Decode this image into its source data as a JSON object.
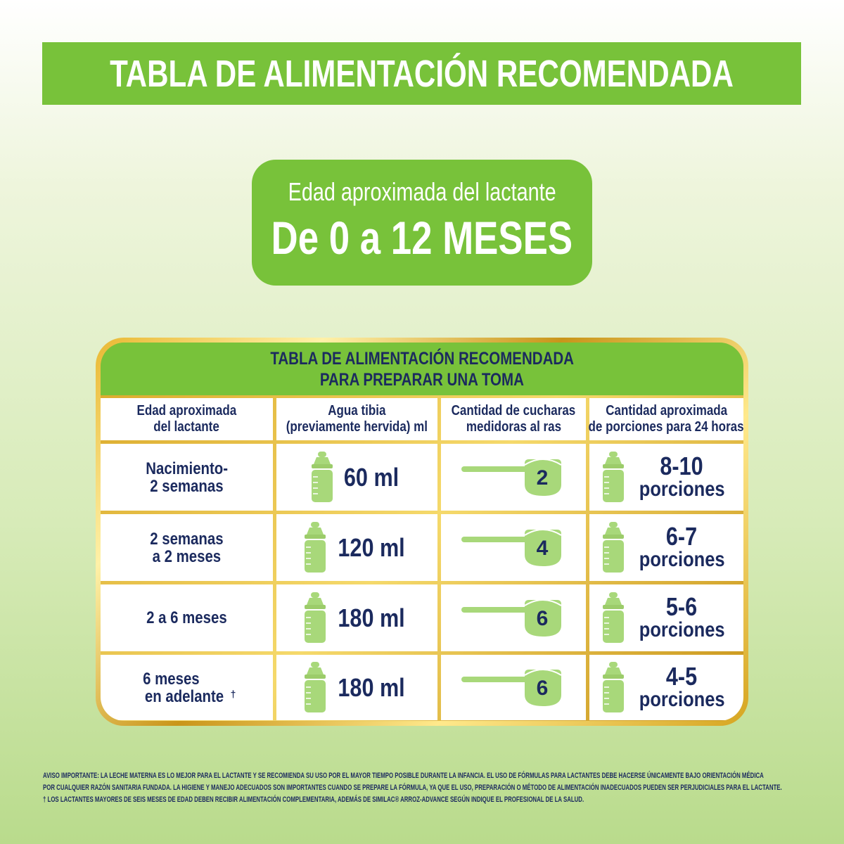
{
  "banner": {
    "title": "TABLA DE ALIMENTACIÓN RECOMENDADA"
  },
  "age_badge": {
    "subtitle": "Edad aproximada del lactante",
    "range": "De 0 a 12 MESES"
  },
  "table": {
    "title_line1": "TABLA DE ALIMENTACIÓN RECOMENDADA",
    "title_line2": "PARA PREPARAR UNA TOMA",
    "headers": [
      {
        "line1": "Edad aproximada",
        "line2": "del lactante"
      },
      {
        "line1": "Agua tibia",
        "line2": "(previamente hervida) ml"
      },
      {
        "line1": "Cantidad de cucharas",
        "line2": "medidoras al ras"
      },
      {
        "line1": "Cantidad aproximada",
        "line2": "de porciones para 24 horas"
      }
    ],
    "rows": [
      {
        "age_line1": "Nacimiento-",
        "age_line2": "2 semanas",
        "age_mark": "",
        "water": "60 ml",
        "scoops": "2",
        "portions_range": "8-10",
        "portions_unit": "porciones"
      },
      {
        "age_line1": "2 semanas",
        "age_line2": "a 2 meses",
        "age_mark": "",
        "water": "120 ml",
        "scoops": "4",
        "portions_range": "6-7",
        "portions_unit": "porciones"
      },
      {
        "age_line1": "2 a 6 meses",
        "age_line2": "",
        "age_mark": "",
        "water": "180 ml",
        "scoops": "6",
        "portions_range": "5-6",
        "portions_unit": "porciones"
      },
      {
        "age_line1": "6 meses",
        "age_line2": "en adelante",
        "age_mark": "†",
        "water": "180 ml",
        "scoops": "6",
        "portions_range": "4-5",
        "portions_unit": "porciones"
      }
    ]
  },
  "footnote": {
    "line1": "AVISO IMPORTANTE: LA LECHE MATERNA ES LO MEJOR PARA EL LACTANTE Y SE RECOMIENDA SU USO POR EL MAYOR TIEMPO POSIBLE DURANTE LA INFANCIA. EL USO DE FÓRMULAS PARA LACTANTES DEBE HACERSE ÚNICAMENTE BAJO ORIENTACIÓN MÉDICA",
    "line2": "POR CUALQUIER RAZÓN SANITARIA FUNDADA. LA HIGIENE Y MANEJO ADECUADOS SON IMPORTANTES CUANDO SE PREPARE LA FÓRMULA, YA QUE EL USO, PREPARACIÓN O MÉTODO DE ALIMENTACIÓN INADECUADOS PUEDEN SER PERJUDICIALES PARA EL LACTANTE.",
    "line3": "† LOS LACTANTES MAYORES DE SEIS MESES DE EDAD DEBEN RECIBIR ALIMENTACIÓN COMPLEMENTARIA, ADEMÁS DE SIMILAC® ARROZ-ADVANCE SEGÚN INDIQUE EL PROFESIONAL DE LA SALUD."
  },
  "colors": {
    "brand_green": "#78c23a",
    "icon_green": "#a8d87a",
    "text_navy": "#1b2a5e",
    "gold_frame": "#d9a727"
  },
  "icons": [
    "baby-bottle-icon",
    "measuring-scoop-icon"
  ]
}
